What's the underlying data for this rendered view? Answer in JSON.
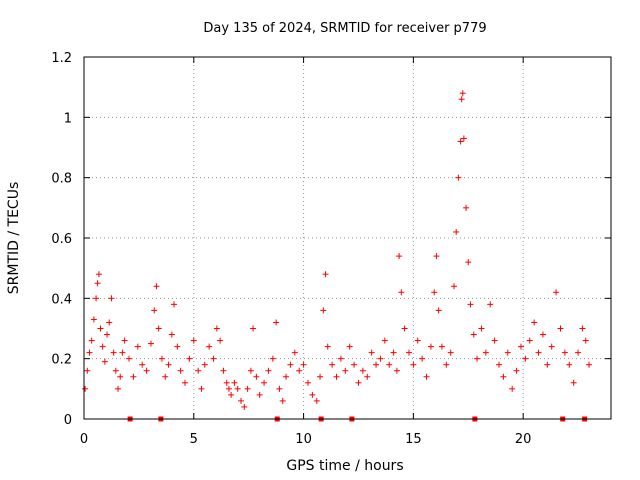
{
  "chart_data": {
    "type": "scatter",
    "title": "Day 135 of 2024, SRMTID for receiver p779",
    "xlabel": "GPS time / hours",
    "ylabel": "SRMTID / TECUs",
    "xlim": [
      0,
      24
    ],
    "ylim": [
      0,
      1.2
    ],
    "xticks": [
      0,
      5,
      10,
      15,
      20
    ],
    "xtick_labels": [
      "0",
      "5",
      "10",
      "15",
      "20"
    ],
    "yticks": [
      0,
      0.2,
      0.4,
      0.6,
      0.8,
      1.0,
      1.2
    ],
    "ytick_labels": [
      "0",
      "0.2",
      "0.4",
      "0.6",
      "0.8",
      "1",
      "1.2"
    ],
    "grid": true,
    "marker": "+",
    "color": "#ff0000",
    "series": [
      {
        "name": "SRMTID",
        "points": [
          [
            0.05,
            0.1
          ],
          [
            0.15,
            0.16
          ],
          [
            0.25,
            0.22
          ],
          [
            0.35,
            0.26
          ],
          [
            0.45,
            0.33
          ],
          [
            0.55,
            0.4
          ],
          [
            0.62,
            0.45
          ],
          [
            0.68,
            0.48
          ],
          [
            0.75,
            0.3
          ],
          [
            0.85,
            0.24
          ],
          [
            0.95,
            0.19
          ],
          [
            1.05,
            0.28
          ],
          [
            1.15,
            0.32
          ],
          [
            1.25,
            0.4
          ],
          [
            1.35,
            0.22
          ],
          [
            1.45,
            0.16
          ],
          [
            1.55,
            0.1
          ],
          [
            1.65,
            0.14
          ],
          [
            1.75,
            0.22
          ],
          [
            1.85,
            0.26
          ],
          [
            2.05,
            0.2
          ],
          [
            2.25,
            0.14
          ],
          [
            2.45,
            0.24
          ],
          [
            2.65,
            0.18
          ],
          [
            2.85,
            0.16
          ],
          [
            3.05,
            0.25
          ],
          [
            3.2,
            0.36
          ],
          [
            3.3,
            0.44
          ],
          [
            3.4,
            0.3
          ],
          [
            3.55,
            0.2
          ],
          [
            3.7,
            0.14
          ],
          [
            3.85,
            0.18
          ],
          [
            4.0,
            0.28
          ],
          [
            4.1,
            0.38
          ],
          [
            4.25,
            0.24
          ],
          [
            4.4,
            0.16
          ],
          [
            4.6,
            0.12
          ],
          [
            4.8,
            0.2
          ],
          [
            5.0,
            0.26
          ],
          [
            5.2,
            0.16
          ],
          [
            5.35,
            0.1
          ],
          [
            5.5,
            0.18
          ],
          [
            5.7,
            0.24
          ],
          [
            5.9,
            0.2
          ],
          [
            6.05,
            0.3
          ],
          [
            6.2,
            0.26
          ],
          [
            6.35,
            0.16
          ],
          [
            6.5,
            0.12
          ],
          [
            6.6,
            0.1
          ],
          [
            6.7,
            0.08
          ],
          [
            6.85,
            0.12
          ],
          [
            7.0,
            0.1
          ],
          [
            7.15,
            0.06
          ],
          [
            7.3,
            0.04
          ],
          [
            7.45,
            0.1
          ],
          [
            7.6,
            0.16
          ],
          [
            7.7,
            0.3
          ],
          [
            7.85,
            0.14
          ],
          [
            8.0,
            0.08
          ],
          [
            8.2,
            0.12
          ],
          [
            8.4,
            0.16
          ],
          [
            8.6,
            0.2
          ],
          [
            8.75,
            0.32
          ],
          [
            8.9,
            0.1
          ],
          [
            9.05,
            0.06
          ],
          [
            9.2,
            0.14
          ],
          [
            9.4,
            0.18
          ],
          [
            9.6,
            0.22
          ],
          [
            9.8,
            0.16
          ],
          [
            10.0,
            0.18
          ],
          [
            10.2,
            0.12
          ],
          [
            10.4,
            0.08
          ],
          [
            10.6,
            0.06
          ],
          [
            10.75,
            0.14
          ],
          [
            10.9,
            0.36
          ],
          [
            11.0,
            0.48
          ],
          [
            11.1,
            0.24
          ],
          [
            11.3,
            0.18
          ],
          [
            11.5,
            0.14
          ],
          [
            11.7,
            0.2
          ],
          [
            11.9,
            0.16
          ],
          [
            12.1,
            0.24
          ],
          [
            12.3,
            0.18
          ],
          [
            12.5,
            0.12
          ],
          [
            12.7,
            0.16
          ],
          [
            12.9,
            0.14
          ],
          [
            13.1,
            0.22
          ],
          [
            13.3,
            0.18
          ],
          [
            13.5,
            0.2
          ],
          [
            13.7,
            0.26
          ],
          [
            13.9,
            0.18
          ],
          [
            14.1,
            0.22
          ],
          [
            14.25,
            0.16
          ],
          [
            14.35,
            0.54
          ],
          [
            14.45,
            0.42
          ],
          [
            14.6,
            0.3
          ],
          [
            14.8,
            0.22
          ],
          [
            15.0,
            0.18
          ],
          [
            15.2,
            0.26
          ],
          [
            15.4,
            0.2
          ],
          [
            15.6,
            0.14
          ],
          [
            15.8,
            0.24
          ],
          [
            15.95,
            0.42
          ],
          [
            16.05,
            0.54
          ],
          [
            16.15,
            0.36
          ],
          [
            16.3,
            0.24
          ],
          [
            16.5,
            0.18
          ],
          [
            16.7,
            0.22
          ],
          [
            16.85,
            0.44
          ],
          [
            16.95,
            0.62
          ],
          [
            17.05,
            0.8
          ],
          [
            17.15,
            0.92
          ],
          [
            17.2,
            1.06
          ],
          [
            17.25,
            1.08
          ],
          [
            17.3,
            0.93
          ],
          [
            17.4,
            0.7
          ],
          [
            17.5,
            0.52
          ],
          [
            17.6,
            0.38
          ],
          [
            17.75,
            0.28
          ],
          [
            17.9,
            0.2
          ],
          [
            18.1,
            0.3
          ],
          [
            18.3,
            0.22
          ],
          [
            18.5,
            0.38
          ],
          [
            18.7,
            0.26
          ],
          [
            18.9,
            0.18
          ],
          [
            19.1,
            0.14
          ],
          [
            19.3,
            0.22
          ],
          [
            19.5,
            0.1
          ],
          [
            19.7,
            0.16
          ],
          [
            19.9,
            0.24
          ],
          [
            20.1,
            0.2
          ],
          [
            20.3,
            0.26
          ],
          [
            20.5,
            0.32
          ],
          [
            20.7,
            0.22
          ],
          [
            20.9,
            0.28
          ],
          [
            21.1,
            0.18
          ],
          [
            21.3,
            0.24
          ],
          [
            21.5,
            0.42
          ],
          [
            21.7,
            0.3
          ],
          [
            21.9,
            0.22
          ],
          [
            22.1,
            0.18
          ],
          [
            22.3,
            0.12
          ],
          [
            22.5,
            0.22
          ],
          [
            22.7,
            0.3
          ],
          [
            22.85,
            0.26
          ],
          [
            23.0,
            0.18
          ]
        ]
      }
    ],
    "bottom_markers_x": [
      2.1,
      3.5,
      8.8,
      10.8,
      12.2,
      17.8,
      21.8,
      22.8
    ]
  }
}
